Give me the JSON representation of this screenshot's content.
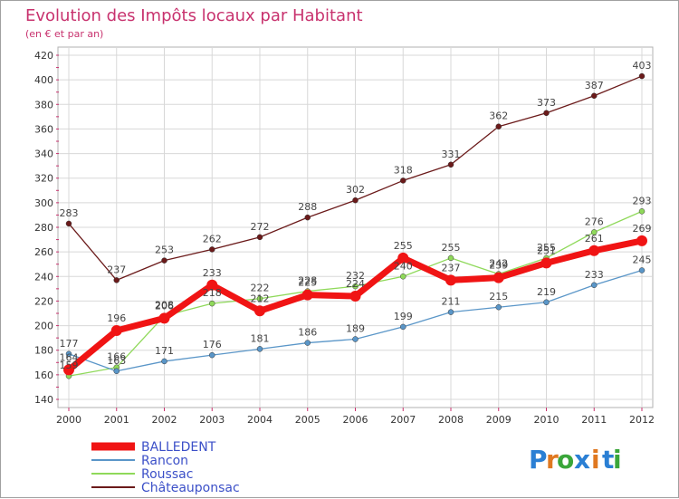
{
  "chart_data": {
    "type": "line",
    "title": "Evolution des Impôts locaux par Habitant",
    "subtitle": "(en € et par an)",
    "xlabel": "",
    "ylabel": "",
    "ylim": [
      140,
      420
    ],
    "yticks": [
      140,
      160,
      180,
      200,
      220,
      240,
      260,
      280,
      300,
      320,
      340,
      360,
      380,
      400,
      420
    ],
    "categories": [
      "2000",
      "2001",
      "2002",
      "2003",
      "2004",
      "2005",
      "2006",
      "2007",
      "2008",
      "2009",
      "2010",
      "2011",
      "2012"
    ],
    "grid": true,
    "legend_position": "bottom-left",
    "series": [
      {
        "name": "Châteauponsac",
        "color": "#6b1a1a",
        "values": [
          283,
          237,
          253,
          262,
          272,
          288,
          302,
          318,
          331,
          362,
          373,
          387,
          403
        ]
      },
      {
        "name": "Roussac",
        "color": "#8fd95a",
        "values": [
          159,
          166,
          208,
          218,
          222,
          228,
          232,
          240,
          255,
          242,
          255,
          276,
          293
        ]
      },
      {
        "name": "Rancon",
        "color": "#5a96c8",
        "values": [
          177,
          163,
          171,
          176,
          181,
          186,
          189,
          199,
          211,
          215,
          219,
          233,
          245
        ]
      },
      {
        "name": "BALLEDENT",
        "color": "#f01414",
        "values": [
          164,
          196,
          206,
          233,
          212,
          225,
          224,
          255,
          237,
          239,
          251,
          261,
          269
        ]
      }
    ]
  },
  "logo": {
    "text": "Proxiti",
    "letters": [
      "P",
      "r",
      "o",
      "x",
      "i",
      "t",
      "i"
    ],
    "colors": [
      "#2a7fd4",
      "#e07820",
      "#3aa63a",
      "#2a7fd4",
      "#e07820",
      "#2a7fd4",
      "#3aa63a"
    ]
  },
  "colors": {
    "title": "#c8326e",
    "legend_text": "#3c50c8",
    "grid": "#d8d8d8",
    "axis_tick": "#c8326e"
  }
}
